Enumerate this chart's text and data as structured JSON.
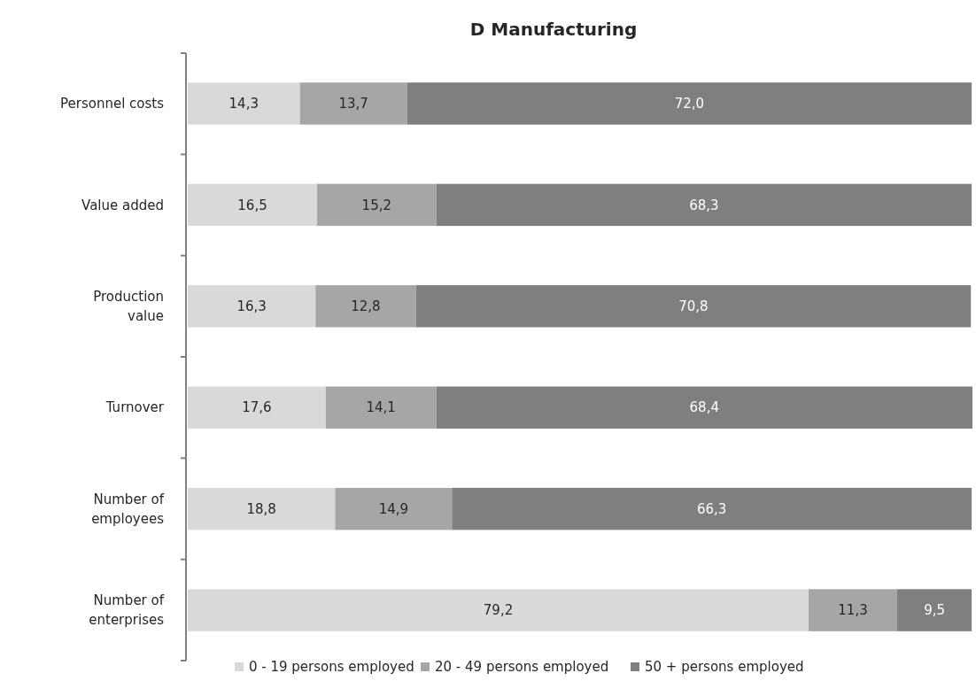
{
  "chart_data": {
    "type": "bar",
    "orientation": "horizontal",
    "stacked": true,
    "title": "D  Manufacturing",
    "categories": [
      "Personnel costs",
      "Value added",
      "Production value",
      "Turnover",
      "Number of employees",
      "Number of enterprises"
    ],
    "series": [
      {
        "name": "0 - 19  persons employed",
        "color": "#d9d9d9",
        "values": [
          14.3,
          16.5,
          16.3,
          17.6,
          18.8,
          79.2
        ],
        "value_labels": [
          "14,3",
          "16,5",
          "16,3",
          "17,6",
          "18,8",
          "79,2"
        ]
      },
      {
        "name": "20 - 49  persons employed",
        "color": "#a6a6a6",
        "values": [
          13.7,
          15.2,
          12.8,
          14.1,
          14.9,
          11.3
        ],
        "value_labels": [
          "13,7",
          "15,2",
          "12,8",
          "14,1",
          "14,9",
          "11,3"
        ]
      },
      {
        "name": "50 +  persons employed",
        "color": "#7f7f7f",
        "values": [
          72.0,
          68.3,
          70.8,
          68.4,
          66.3,
          9.5
        ],
        "value_labels": [
          "72,0",
          "68,3",
          "70,8",
          "68,4",
          "66,3",
          "9,5"
        ]
      }
    ],
    "legend": "bottom",
    "tick_labels": "y"
  }
}
